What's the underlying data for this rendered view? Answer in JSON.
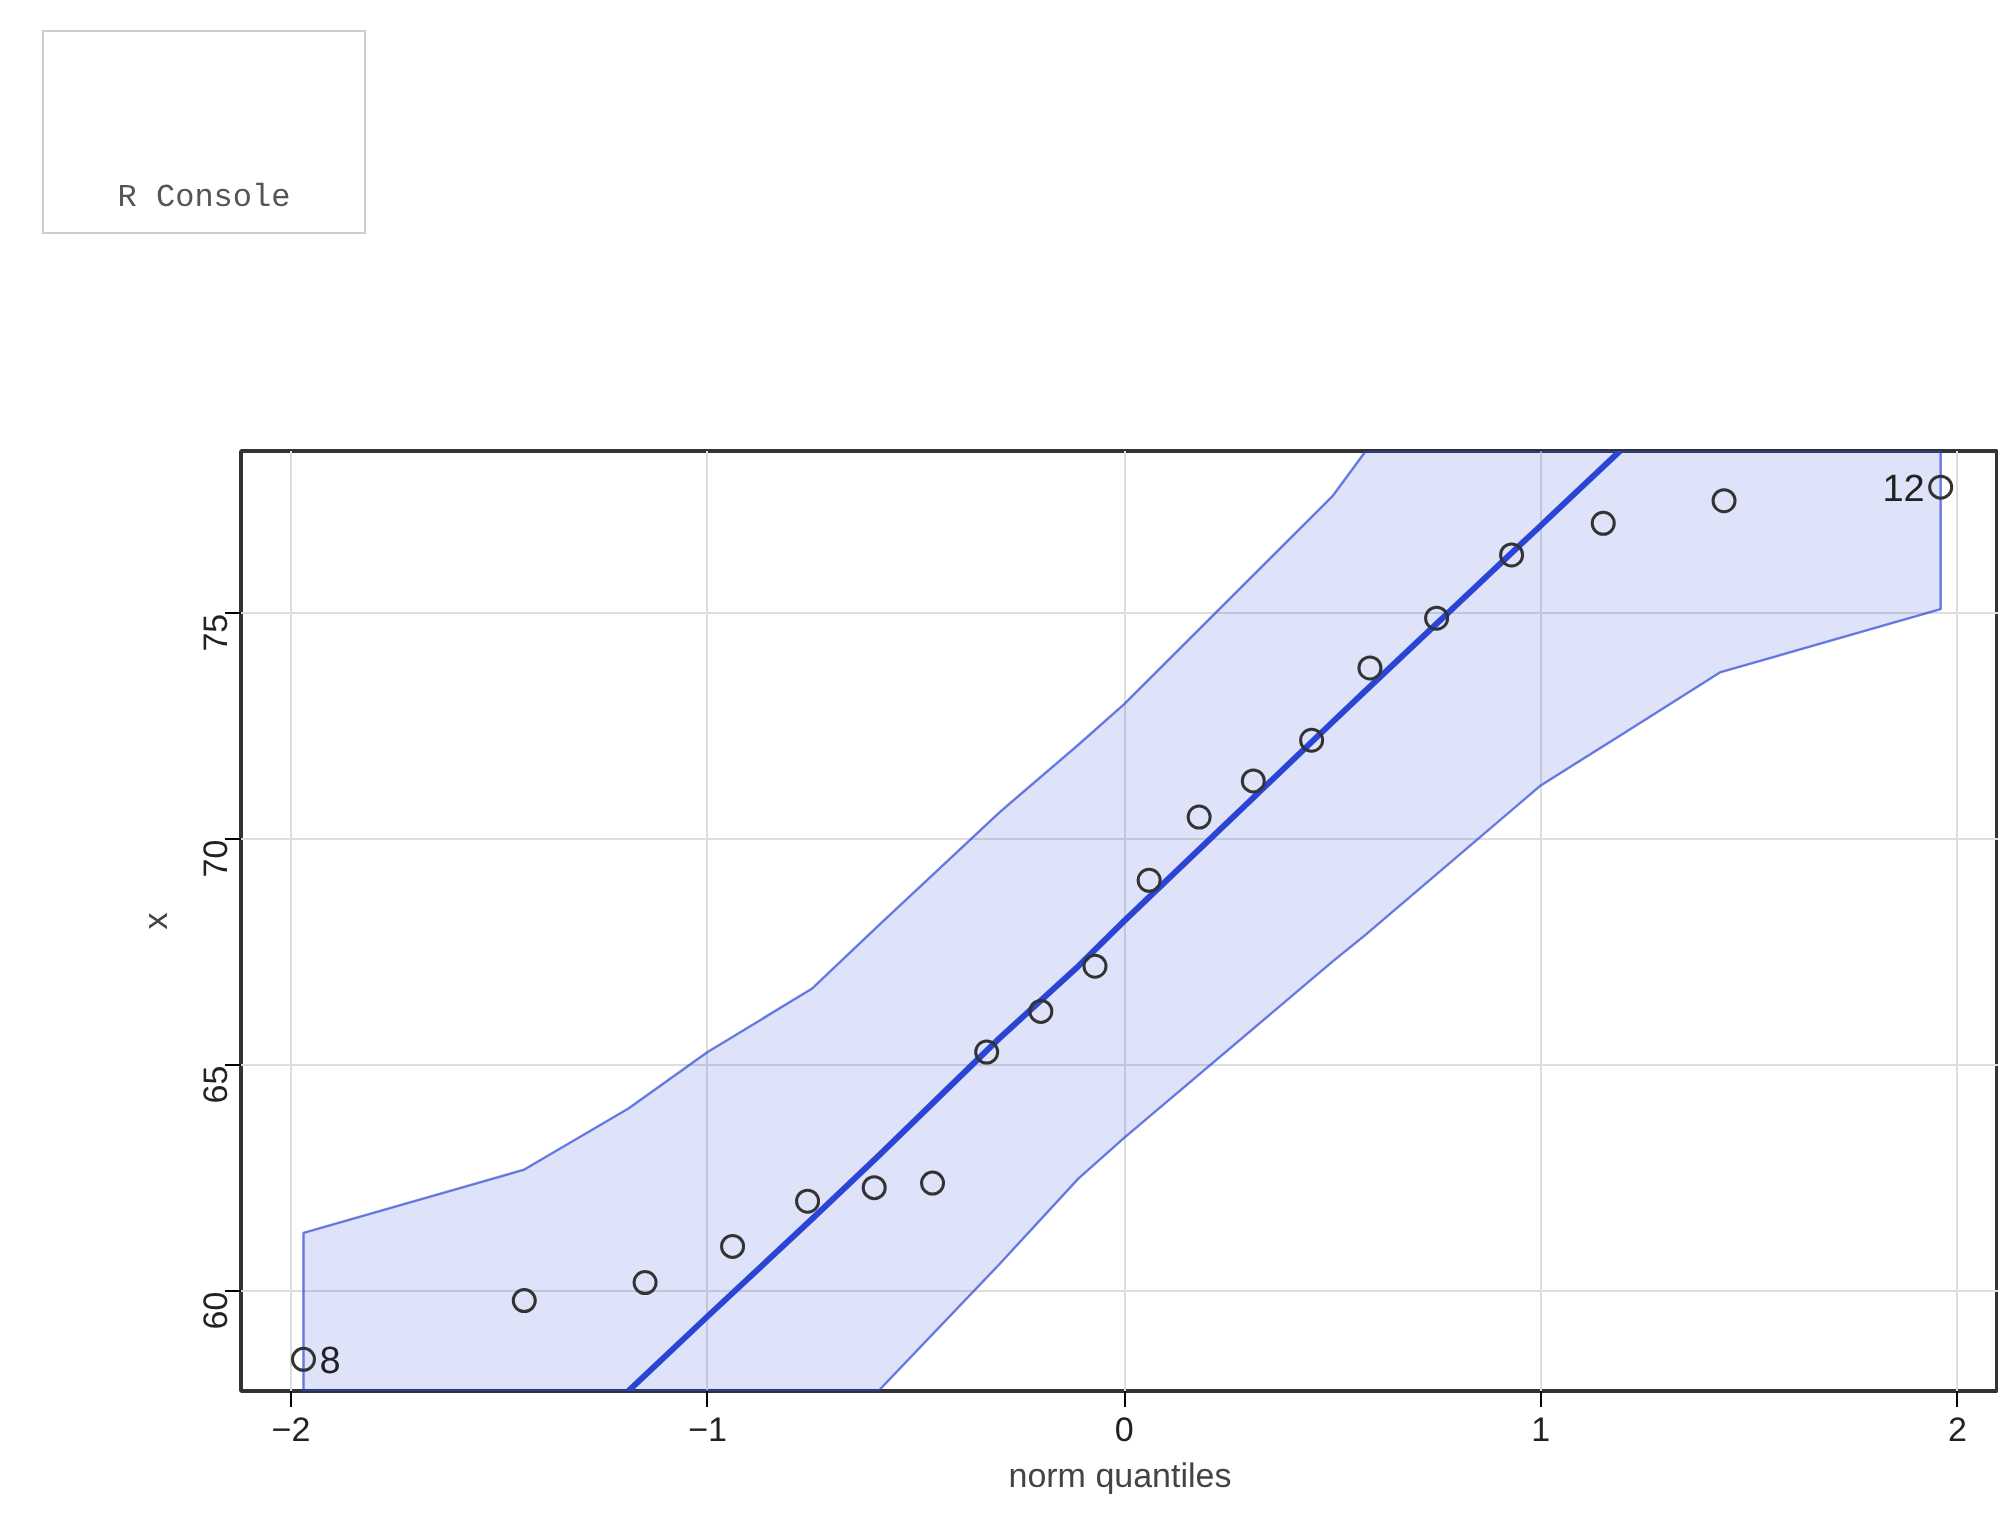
{
  "chart_data": {
    "type": "scatter",
    "xlabel": "norm quantiles",
    "ylabel": "x",
    "xlim": [
      -2.12,
      2.1
    ],
    "ylim": [
      57.8,
      78.6
    ],
    "xticks": [
      -2,
      -1,
      0,
      1,
      2
    ],
    "yticks": [
      60,
      65,
      70,
      75
    ],
    "grid": true,
    "series": [
      {
        "marker": "circle",
        "color": "#333333",
        "x": [
          -1.97,
          -1.44,
          -1.15,
          -0.94,
          -0.76,
          -0.6,
          -0.46,
          -0.33,
          -0.2,
          -0.07,
          0.06,
          0.18,
          0.31,
          0.45,
          0.59,
          0.75,
          0.93,
          1.15,
          1.44,
          1.96
        ],
        "values": [
          58.5,
          59.8,
          60.2,
          61.0,
          62.0,
          62.3,
          62.4,
          65.3,
          66.2,
          67.2,
          69.1,
          70.5,
          71.3,
          72.2,
          73.8,
          74.9,
          76.3,
          77.0,
          77.5,
          77.8
        ]
      },
      {
        "type": "line",
        "marker": "none",
        "color": "#2a45d6",
        "x": [
          -1.97,
          -1.44,
          -1.19,
          -1.0,
          -0.75,
          -0.59,
          -0.3,
          -0.11,
          0.0,
          0.5,
          0.58,
          1.0,
          1.19,
          1.43,
          1.96
        ],
        "values": [
          null,
          null,
          57.8,
          59.45,
          61.6,
          63.0,
          65.6,
          67.2,
          68.2,
          72.6,
          73.3,
          76.95,
          78.6,
          null,
          null
        ],
        "upper": [
          61.3,
          62.7,
          64.05,
          65.3,
          66.7,
          68.1,
          70.6,
          72.1,
          73.0,
          77.6,
          78.6,
          78.6,
          78.6,
          78.6,
          78.6
        ],
        "lower": [
          57.8,
          57.8,
          57.8,
          57.8,
          57.8,
          57.8,
          60.6,
          62.5,
          63.4,
          67.3,
          67.9,
          71.2,
          72.3,
          73.7,
          75.1
        ]
      }
    ],
    "annotations": [
      {
        "text": "8",
        "x": -1.97,
        "y": 58.5
      },
      {
        "text": "12",
        "x": 1.96,
        "y": 77.8
      },
      "R Console"
    ]
  }
}
